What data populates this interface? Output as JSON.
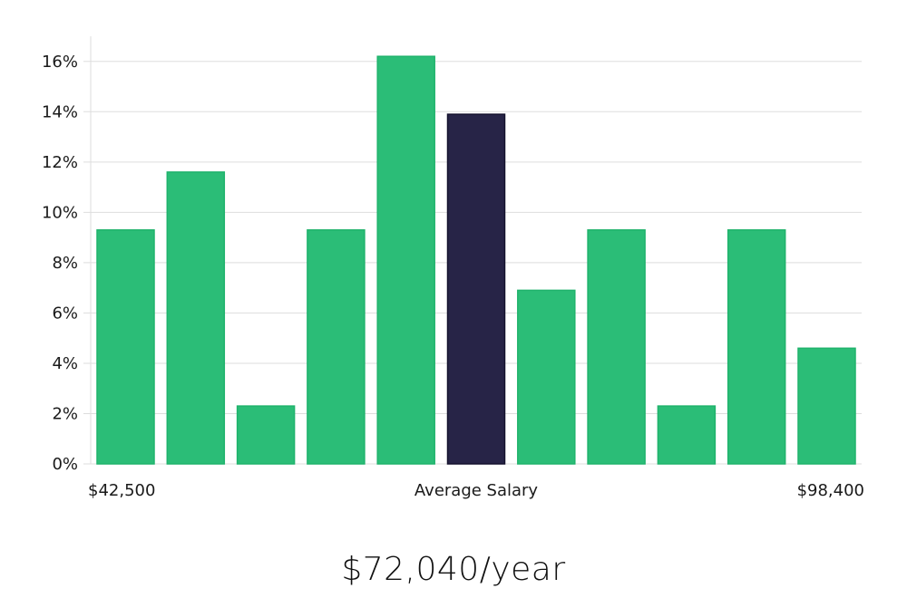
{
  "chart_data": {
    "type": "bar",
    "title": "",
    "xlabel": "Average Salary",
    "ylabel": "",
    "ylim": [
      0,
      17
    ],
    "yticks": [
      0,
      2,
      4,
      6,
      8,
      10,
      12,
      14,
      16
    ],
    "ytick_suffix": "%",
    "min_label": "$42,500",
    "max_label": "$98,400",
    "center_label": "Average Salary",
    "values": [
      9.3,
      11.6,
      2.3,
      9.3,
      16.2,
      13.9,
      6.9,
      9.3,
      2.3,
      9.3,
      4.6
    ],
    "highlight_index": 5,
    "colors": {
      "bar": "#2bbd77",
      "bar_stroke": "#1fb36c",
      "highlight": "#272447",
      "highlight_stroke": "#15122e"
    }
  },
  "summary": {
    "average_salary": "$72,040/year"
  }
}
